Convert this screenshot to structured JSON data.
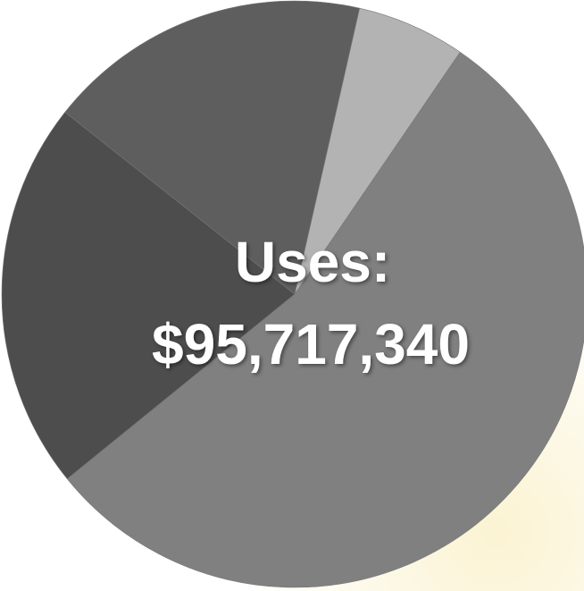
{
  "chart_data": {
    "type": "pie",
    "values": [
      6,
      54.6,
      21.5,
      17.9
    ],
    "colors": [
      "#b3b3b3",
      "#808080",
      "#4d4d4d",
      "#5e5e5e"
    ],
    "annotations": [
      "Uses:",
      "$95,717,340"
    ]
  }
}
